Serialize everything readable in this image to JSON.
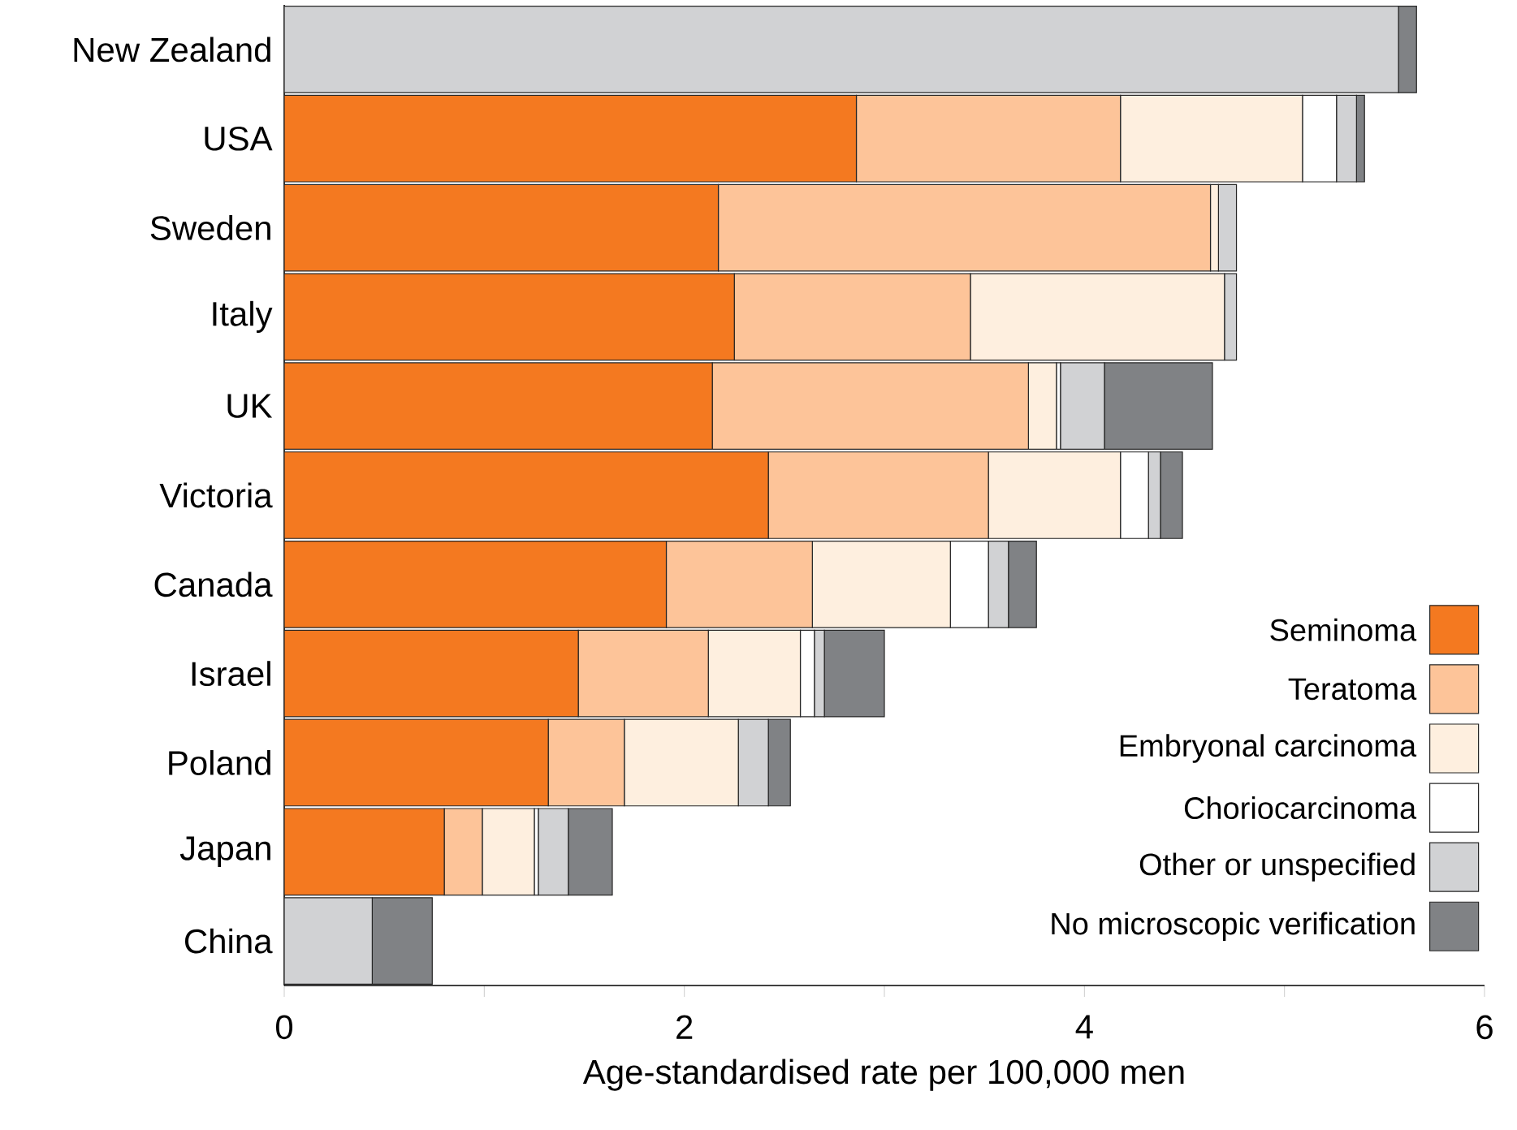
{
  "chart_data": {
    "type": "bar",
    "orientation": "horizontal",
    "stacked": true,
    "xlabel": "Age-standardised rate per 100,000 men",
    "categories": [
      "New Zealand",
      "USA",
      "Sweden",
      "Italy",
      "UK",
      "Victoria",
      "Canada",
      "Israel",
      "Poland",
      "Japan",
      "China"
    ],
    "series": [
      {
        "name": "Seminoma",
        "color": "#f47920",
        "values": [
          0,
          2.86,
          2.17,
          2.25,
          2.14,
          2.42,
          1.91,
          1.47,
          1.32,
          0.8,
          0
        ]
      },
      {
        "name": "Teratoma",
        "color": "#fdc499",
        "values": [
          0,
          1.32,
          2.46,
          1.18,
          1.58,
          1.1,
          0.73,
          0.65,
          0.38,
          0.19,
          0
        ]
      },
      {
        "name": "Embryonal carcinoma",
        "color": "#feefdf",
        "values": [
          0,
          0.91,
          0.04,
          1.27,
          0.14,
          0.66,
          0.69,
          0.46,
          0.57,
          0.26,
          0
        ]
      },
      {
        "name": "Choriocarcinoma",
        "color": "#ffffff",
        "values": [
          0,
          0.17,
          0,
          0,
          0.02,
          0.14,
          0.19,
          0.07,
          0,
          0.02,
          0
        ]
      },
      {
        "name": "Other or unspecified",
        "color": "#d1d2d4",
        "values": [
          5.57,
          0.1,
          0.09,
          0.06,
          0.22,
          0.06,
          0.1,
          0.05,
          0.15,
          0.15,
          0.44
        ]
      },
      {
        "name": "No microscopic verification",
        "color": "#808285",
        "values": [
          0.09,
          0.04,
          0,
          0,
          0.54,
          0.11,
          0.14,
          0.3,
          0.11,
          0.22,
          0.3
        ]
      }
    ],
    "xlim": [
      0,
      6
    ],
    "xticks": [
      0,
      {
        "value": 1,
        "label": null
      },
      2,
      {
        "value": 3,
        "label": null
      },
      4,
      {
        "value": 5,
        "label": null
      },
      6
    ],
    "grid": false,
    "legend": "bottom right"
  }
}
